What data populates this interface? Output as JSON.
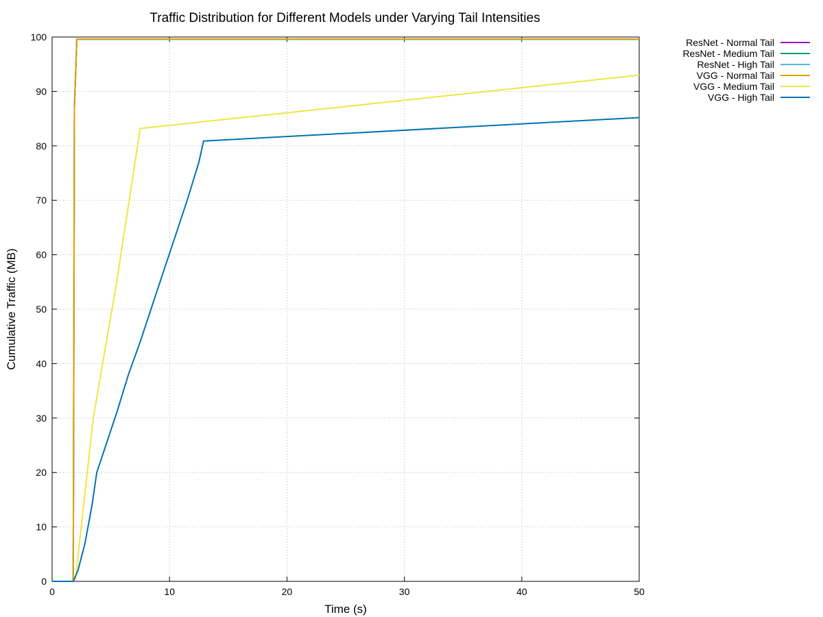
{
  "chart_data": {
    "type": "line",
    "title": "Traffic Distribution for Different Models under Varying Tail Intensities",
    "xlabel": "Time (s)",
    "ylabel": "Cumulative Traffic (MB)",
    "xlim": [
      0,
      50
    ],
    "ylim": [
      0,
      100
    ],
    "x_ticks": [
      0,
      10,
      20,
      30,
      40,
      50
    ],
    "y_ticks": [
      0,
      10,
      20,
      30,
      40,
      50,
      60,
      70,
      80,
      90,
      100
    ],
    "grid": true,
    "legend_position": "outside-top-right",
    "series": [
      {
        "name": "ResNet - Normal Tail",
        "color": "#9400d3",
        "points": [
          [
            0,
            0
          ],
          [
            1.8,
            0
          ],
          [
            1.9,
            87
          ],
          [
            2.1,
            99.6
          ],
          [
            50,
            99.6
          ]
        ]
      },
      {
        "name": "ResNet - Medium Tail",
        "color": "#009e73",
        "points": [
          [
            0,
            0
          ],
          [
            1.8,
            0
          ],
          [
            1.9,
            87
          ],
          [
            2.1,
            99.6
          ],
          [
            50,
            99.6
          ]
        ]
      },
      {
        "name": "ResNet - High Tail",
        "color": "#56b4e9",
        "points": [
          [
            0,
            0
          ],
          [
            1.8,
            0
          ],
          [
            1.9,
            87
          ],
          [
            2.1,
            99.6
          ],
          [
            50,
            99.6
          ]
        ]
      },
      {
        "name": "VGG - Normal Tail",
        "color": "#e69f00",
        "points": [
          [
            0,
            0
          ],
          [
            1.8,
            0
          ],
          [
            1.9,
            87
          ],
          [
            2.1,
            99.6
          ],
          [
            50,
            99.6
          ]
        ]
      },
      {
        "name": "VGG - Medium Tail",
        "color": "#f0e442",
        "points": [
          [
            0,
            0
          ],
          [
            1.8,
            0
          ],
          [
            2.0,
            0.5
          ],
          [
            3.5,
            30
          ],
          [
            5.5,
            55
          ],
          [
            7.5,
            83.2
          ],
          [
            50,
            93
          ]
        ]
      },
      {
        "name": "VGG - High Tail",
        "color": "#0072b2",
        "points": [
          [
            0,
            0
          ],
          [
            1.8,
            0
          ],
          [
            2.2,
            2
          ],
          [
            2.8,
            7
          ],
          [
            3.4,
            14
          ],
          [
            3.8,
            20
          ],
          [
            4.5,
            24.5
          ],
          [
            5.5,
            31
          ],
          [
            6.5,
            38
          ],
          [
            7.5,
            44
          ],
          [
            8.5,
            50.5
          ],
          [
            9.5,
            57
          ],
          [
            10.5,
            63.5
          ],
          [
            11.5,
            70
          ],
          [
            12.5,
            77
          ],
          [
            12.9,
            80.9
          ],
          [
            50,
            85.2
          ]
        ]
      }
    ]
  }
}
